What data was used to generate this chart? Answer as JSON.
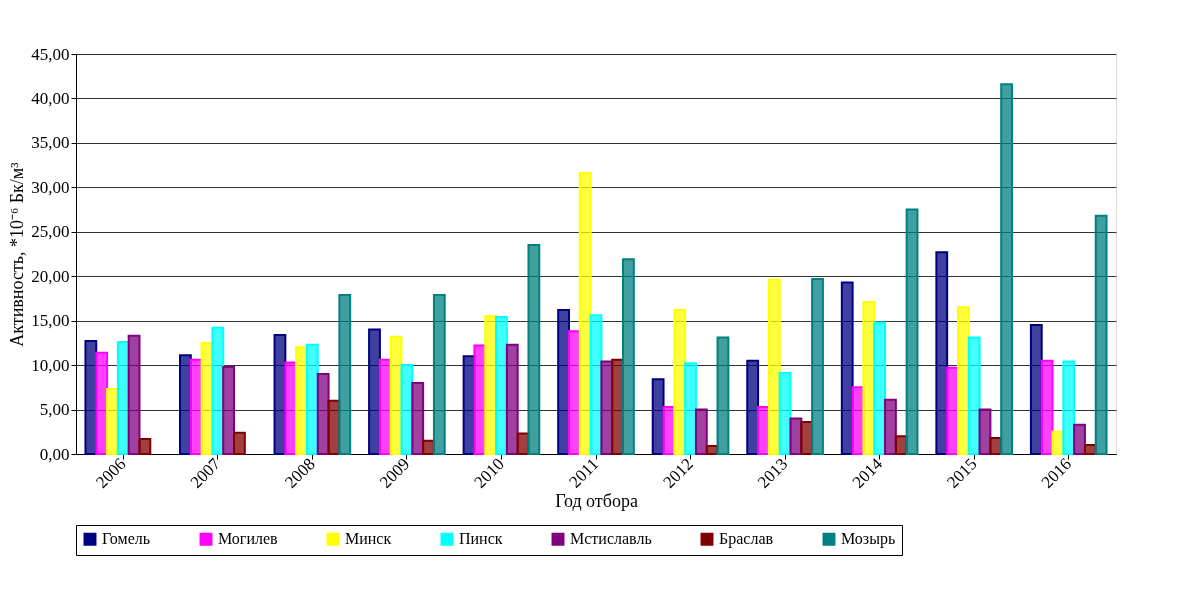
{
  "chart_data": {
    "type": "bar",
    "xlabel": "Год отбора",
    "ylabel": "Активность, *10⁻⁶ Бк/м³",
    "categories": [
      "2006",
      "2007",
      "2008",
      "2009",
      "2010",
      "2011",
      "2012",
      "2013",
      "2014",
      "2015",
      "2016"
    ],
    "series": [
      {
        "name": "Гомель",
        "color": "#000080",
        "values": [
          12.7,
          11.1,
          13.4,
          14.0,
          11.0,
          16.2,
          8.4,
          10.5,
          19.3,
          22.7,
          14.5
        ]
      },
      {
        "name": "Могилев",
        "color": "#ff00ff",
        "values": [
          11.4,
          10.6,
          10.3,
          10.6,
          12.2,
          13.8,
          5.3,
          5.3,
          7.5,
          9.7,
          10.5
        ]
      },
      {
        "name": "Минск",
        "color": "#ffff00",
        "values": [
          7.3,
          12.5,
          12.0,
          13.2,
          15.5,
          31.6,
          16.2,
          19.6,
          17.1,
          16.5,
          2.5
        ]
      },
      {
        "name": "Пинск",
        "color": "#00ffff",
        "values": [
          12.6,
          14.2,
          12.3,
          10.0,
          15.4,
          15.6,
          10.2,
          9.1,
          14.8,
          13.1,
          10.4
        ]
      },
      {
        "name": "Мстиславль",
        "color": "#800080",
        "values": [
          13.3,
          9.8,
          9.0,
          8.0,
          12.3,
          10.4,
          5.0,
          4.0,
          6.1,
          5.0,
          3.3
        ]
      },
      {
        "name": "Браслав",
        "color": "#800000",
        "values": [
          1.7,
          2.4,
          6.0,
          1.5,
          2.3,
          10.6,
          0.9,
          3.6,
          2.0,
          1.8,
          1.0
        ]
      },
      {
        "name": "Мозырь",
        "color": "#008080",
        "values": [
          null,
          null,
          17.9,
          17.9,
          23.5,
          21.9,
          13.1,
          19.7,
          27.5,
          41.6,
          26.8
        ]
      }
    ],
    "ylim": [
      0,
      45
    ],
    "yticks": [
      {
        "value": 0,
        "label": "0,00"
      },
      {
        "value": 5,
        "label": "5,00"
      },
      {
        "value": 10,
        "label": "10,00"
      },
      {
        "value": 15,
        "label": "15,00"
      },
      {
        "value": 20,
        "label": "20,00"
      },
      {
        "value": 25,
        "label": "25,00"
      },
      {
        "value": 30,
        "label": "30,00"
      },
      {
        "value": 35,
        "label": "35,00"
      },
      {
        "value": 40,
        "label": "40,00"
      },
      {
        "value": 45,
        "label": "45,00"
      }
    ],
    "grid": "y",
    "legend": "bottom"
  }
}
